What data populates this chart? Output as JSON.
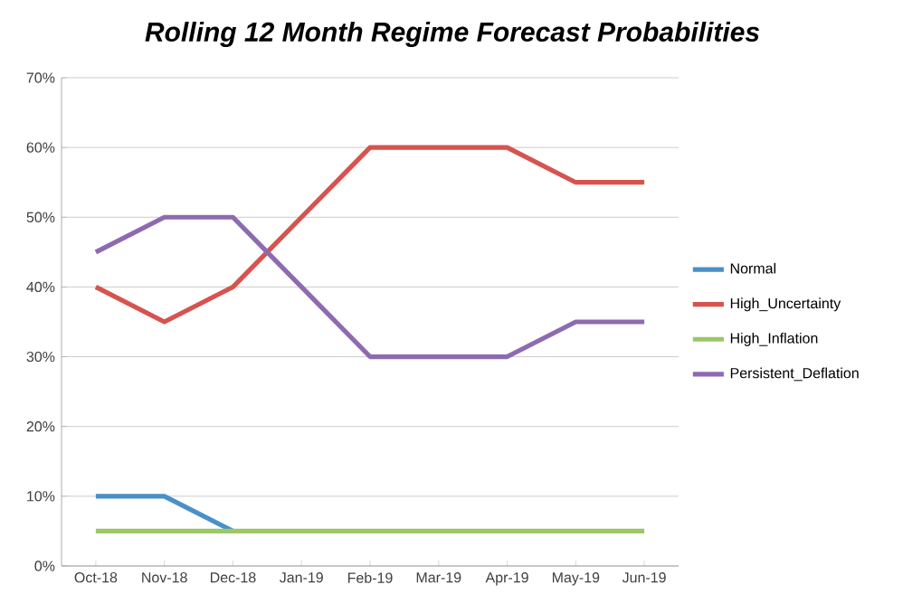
{
  "chart_data": {
    "type": "line",
    "title": "Rolling 12 Month Regime Forecast Probabilities",
    "categories": [
      "Oct-18",
      "Nov-18",
      "Dec-18",
      "Jan-19",
      "Feb-19",
      "Mar-19",
      "Apr-19",
      "May-19",
      "Jun-19"
    ],
    "series": [
      {
        "name": "Normal",
        "color": "#4a90c8",
        "values": [
          10,
          10,
          5,
          null,
          null,
          null,
          null,
          null,
          null
        ]
      },
      {
        "name": "High_Uncertainty",
        "color": "#d6534f",
        "values": [
          40,
          35,
          40,
          50,
          60,
          60,
          60,
          55,
          55
        ]
      },
      {
        "name": "High_Inflation",
        "color": "#9bc868",
        "values": [
          5,
          5,
          5,
          5,
          5,
          5,
          5,
          5,
          5
        ]
      },
      {
        "name": "Persistent_Deflation",
        "color": "#8e6bb0",
        "values": [
          45,
          50,
          50,
          40,
          30,
          30,
          30,
          35,
          35
        ]
      }
    ],
    "ylim": [
      0,
      70
    ],
    "yticks": [
      {
        "value": 0,
        "label": "0%"
      },
      {
        "value": 10,
        "label": "10%"
      },
      {
        "value": 20,
        "label": "20%"
      },
      {
        "value": 30,
        "label": "30%"
      },
      {
        "value": 40,
        "label": "40%"
      },
      {
        "value": 50,
        "label": "50%"
      },
      {
        "value": 60,
        "label": "60%"
      },
      {
        "value": 70,
        "label": "70%"
      }
    ],
    "grid": "y",
    "legend": "right"
  }
}
